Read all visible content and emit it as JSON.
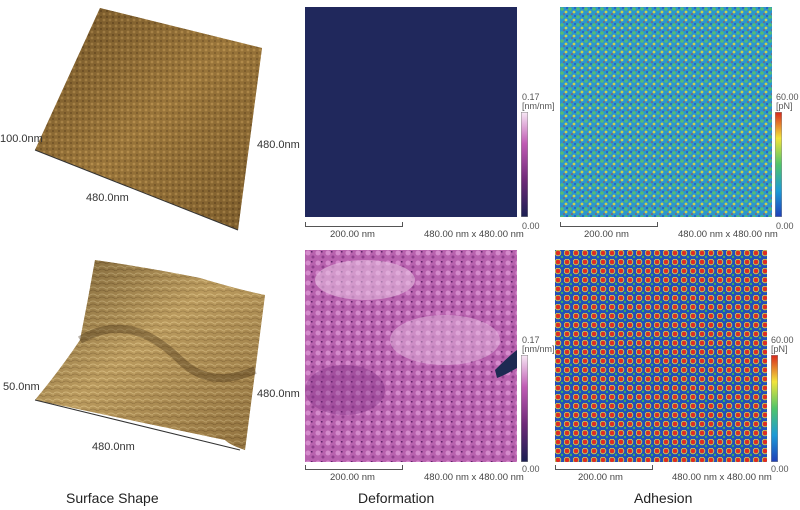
{
  "top_row": {
    "surface": {
      "x_label": "480.0nm",
      "y_label": "480.0nm",
      "z_label": "100.0nm"
    },
    "deformation": {
      "cb_max": "0.17",
      "cb_unit": "[nm/nm]",
      "cb_min": "0.00",
      "scale_bar": "200.00 nm",
      "dims": "480.00 nm x 480.00 nm"
    },
    "adhesion": {
      "cb_max": "60.00",
      "cb_unit": "[pN]",
      "cb_min": "0.00",
      "scale_bar": "200.00 nm",
      "dims": "480.00 nm x 480.00 nm"
    }
  },
  "bottom_row": {
    "surface": {
      "x_label": "480.0nm",
      "y_label": "480.0nm",
      "z_label": "50.0nm"
    },
    "deformation": {
      "cb_max": "0.17",
      "cb_unit": "[nm/nm]",
      "cb_min": "0.00",
      "scale_bar": "200.00 nm",
      "dims": "480.00 nm x 480.00 nm"
    },
    "adhesion": {
      "cb_max": "60.00",
      "cb_unit": "[pN]",
      "cb_min": "0.00",
      "scale_bar": "200.00 nm",
      "dims": "480.00 nm x 480.00 nm"
    }
  },
  "captions": {
    "surface": "Surface Shape",
    "deformation": "Deformation",
    "adhesion": "Adhesion"
  }
}
